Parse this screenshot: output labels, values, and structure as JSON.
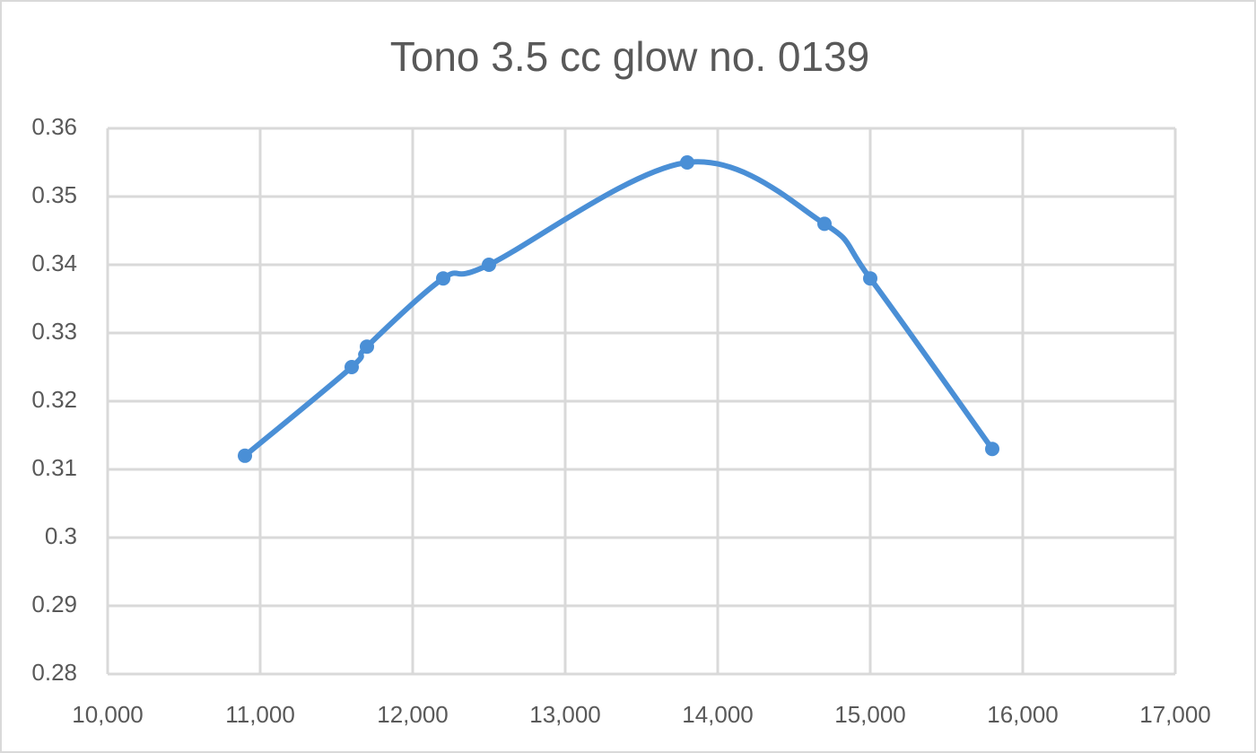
{
  "chart_data": {
    "type": "scatter",
    "title": "Tono 3.5 cc glow no. 0139",
    "x": [
      10900,
      11600,
      11700,
      12200,
      12500,
      13800,
      14700,
      15000,
      15800
    ],
    "series": [
      {
        "color": "#4a8fd6",
        "values": [
          0.312,
          0.325,
          0.328,
          0.338,
          0.34,
          0.355,
          0.346,
          0.338,
          0.313
        ]
      }
    ],
    "xlim": [
      10000,
      17000
    ],
    "xticks": [
      {
        "value": 10000,
        "label": "10,000"
      },
      {
        "value": 11000,
        "label": "11,000"
      },
      {
        "value": 12000,
        "label": "12,000"
      },
      {
        "value": 13000,
        "label": "13,000"
      },
      {
        "value": 14000,
        "label": "14,000"
      },
      {
        "value": 15000,
        "label": "15,000"
      },
      {
        "value": 16000,
        "label": "16,000"
      },
      {
        "value": 17000,
        "label": "17,000"
      }
    ],
    "ylim": [
      0.28,
      0.36
    ],
    "yticks": [
      0.28,
      0.29,
      0.3,
      0.31,
      0.32,
      0.33,
      0.34,
      0.35,
      0.36
    ],
    "grid": true,
    "smooth": true
  }
}
